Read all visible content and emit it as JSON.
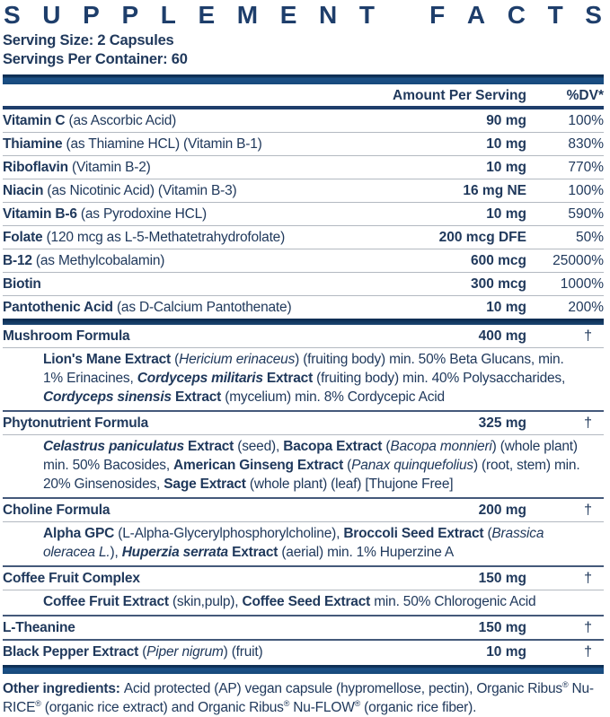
{
  "title": "SUPPLEMENT FACTS",
  "serving": {
    "size": "Serving Size: 2 Capsules",
    "per_container": "Servings Per Container: 60"
  },
  "header": {
    "amount": "Amount Per Serving",
    "dv": "%DV*"
  },
  "colors": {
    "text": "#20395c",
    "title": "#1e3e6b",
    "bar": "#17497b",
    "sep_thin": "#b3b9c1",
    "sep_dark": "#44597a"
  },
  "rows": [
    {
      "kind": "nutrient",
      "sep": "none",
      "name": [
        {
          "t": "Vitamin C ",
          "b": true
        },
        {
          "t": "(as Ascorbic Acid)"
        }
      ],
      "amount": "90 mg",
      "dv": "100%"
    },
    {
      "kind": "nutrient",
      "sep": "thin",
      "name": [
        {
          "t": "Thiamine ",
          "b": true
        },
        {
          "t": "(as Thiamine HCL) (Vitamin B-1)"
        }
      ],
      "amount": "10 mg",
      "dv": "830%"
    },
    {
      "kind": "nutrient",
      "sep": "thin",
      "name": [
        {
          "t": "Riboflavin ",
          "b": true
        },
        {
          "t": "(Vitamin B-2)"
        }
      ],
      "amount": "10 mg",
      "dv": "770%"
    },
    {
      "kind": "nutrient",
      "sep": "thin",
      "name": [
        {
          "t": "Niacin ",
          "b": true
        },
        {
          "t": "(as Nicotinic Acid) (Vitamin B-3)"
        }
      ],
      "amount": "16 mg NE",
      "dv": "100%"
    },
    {
      "kind": "nutrient",
      "sep": "thin",
      "name": [
        {
          "t": "Vitamin B-6 ",
          "b": true
        },
        {
          "t": "(as Pyrodoxine HCL)"
        }
      ],
      "amount": "10 mg",
      "dv": "590%"
    },
    {
      "kind": "nutrient",
      "sep": "thin",
      "name": [
        {
          "t": "Folate ",
          "b": true
        },
        {
          "t": "(120 mcg as L-5-Methatetrahydrofolate)"
        }
      ],
      "amount": "200 mcg DFE",
      "dv": "50%"
    },
    {
      "kind": "nutrient",
      "sep": "thin",
      "name": [
        {
          "t": "B-12 ",
          "b": true
        },
        {
          "t": "(as Methylcobalamin)"
        }
      ],
      "amount": "600 mcg",
      "dv": "25000%"
    },
    {
      "kind": "nutrient",
      "sep": "thin",
      "name": [
        {
          "t": "Biotin",
          "b": true
        }
      ],
      "amount": "300 mcg",
      "dv": "1000%"
    },
    {
      "kind": "nutrient",
      "sep": "thin",
      "name": [
        {
          "t": "Pantothenic Acid ",
          "b": true
        },
        {
          "t": "(as D-Calcium Pantothenate)"
        }
      ],
      "amount": "10 mg",
      "dv": "200%"
    },
    {
      "kind": "divider"
    },
    {
      "kind": "formula",
      "sep": "none",
      "name": [
        {
          "t": "Mushroom Formula",
          "b": true
        }
      ],
      "amount": "400 mg",
      "dv": "†",
      "detail": [
        {
          "t": "Lion's Mane Extract ",
          "b": true
        },
        {
          "t": "("
        },
        {
          "t": "Hericium erinaceus",
          "i": true
        },
        {
          "t": ") (fruiting body) min. 50% Beta Glucans, min. 1% Erinacines, "
        },
        {
          "t": "Cordyceps militaris ",
          "b": true,
          "i": true
        },
        {
          "t": "Extract ",
          "b": true
        },
        {
          "t": "(fruiting body) min. 40% Polysaccharides, "
        },
        {
          "t": "Cordyceps sinensis ",
          "b": true,
          "i": true
        },
        {
          "t": "Extract ",
          "b": true
        },
        {
          "t": "(mycelium) min. 8% Cordycepic Acid"
        }
      ]
    },
    {
      "kind": "formula",
      "sep": "dark",
      "name": [
        {
          "t": "Phytonutrient Formula",
          "b": true
        }
      ],
      "amount": "325 mg",
      "dv": "†",
      "detail": [
        {
          "t": "Celastrus paniculatus ",
          "b": true,
          "i": true
        },
        {
          "t": "Extract ",
          "b": true
        },
        {
          "t": "(seed), "
        },
        {
          "t": "Bacopa Extract ",
          "b": true
        },
        {
          "t": "("
        },
        {
          "t": "Bacopa monnieri",
          "i": true
        },
        {
          "t": ") (whole plant) min. 50% Bacosides, "
        },
        {
          "t": "American Ginseng Extract ",
          "b": true
        },
        {
          "t": "("
        },
        {
          "t": "Panax quinquefolius",
          "i": true
        },
        {
          "t": ") (root, stem) min. 20% Ginsenosides, "
        },
        {
          "t": "Sage Extract ",
          "b": true
        },
        {
          "t": "(whole plant) (leaf) [Thujone Free]"
        }
      ]
    },
    {
      "kind": "formula",
      "sep": "dark",
      "name": [
        {
          "t": "Choline Formula",
          "b": true
        }
      ],
      "amount": "200 mg",
      "dv": "†",
      "detail": [
        {
          "t": "Alpha GPC ",
          "b": true
        },
        {
          "t": "(L-Alpha-Glycerylphosphorylcholine), "
        },
        {
          "t": "Broccoli Seed Extract ",
          "b": true
        },
        {
          "t": "("
        },
        {
          "t": "Brassica oleracea L.",
          "i": true
        },
        {
          "t": "), "
        },
        {
          "t": "Huperzia serrata ",
          "b": true,
          "i": true
        },
        {
          "t": "Extract ",
          "b": true
        },
        {
          "t": "(aerial) min. 1% Huperzine A"
        }
      ]
    },
    {
      "kind": "formula",
      "sep": "dark",
      "name": [
        {
          "t": "Coffee Fruit Complex",
          "b": true
        }
      ],
      "amount": "150 mg",
      "dv": "†",
      "detail": [
        {
          "t": "Coffee Fruit Extract ",
          "b": true
        },
        {
          "t": "(skin,pulp), "
        },
        {
          "t": "Coffee Seed Extract ",
          "b": true
        },
        {
          "t": "min. 50% Chlorogenic Acid"
        }
      ]
    },
    {
      "kind": "formula",
      "sep": "dark",
      "name": [
        {
          "t": "L-Theanine",
          "b": true
        }
      ],
      "amount": "150 mg",
      "dv": "†"
    },
    {
      "kind": "formula",
      "sep": "dark",
      "name": [
        {
          "t": "Black Pepper Extract ",
          "b": true
        },
        {
          "t": "("
        },
        {
          "t": "Piper nigrum",
          "i": true
        },
        {
          "t": ") (fruit)"
        }
      ],
      "amount": "10 mg",
      "dv": "†"
    }
  ],
  "footer": [
    {
      "t": "Other ingredients: ",
      "b": true
    },
    {
      "t": "Acid protected (AP) vegan capsule (hypromellose, pectin), Organic Ribus"
    },
    {
      "t": "®",
      "s": true
    },
    {
      "t": " Nu-RICE"
    },
    {
      "t": "®",
      "s": true
    },
    {
      "t": " (organic rice extract) and Organic Ribus"
    },
    {
      "t": "®",
      "s": true
    },
    {
      "t": " Nu-FLOW"
    },
    {
      "t": "®",
      "s": true
    },
    {
      "t": " (organic rice fiber)."
    }
  ]
}
